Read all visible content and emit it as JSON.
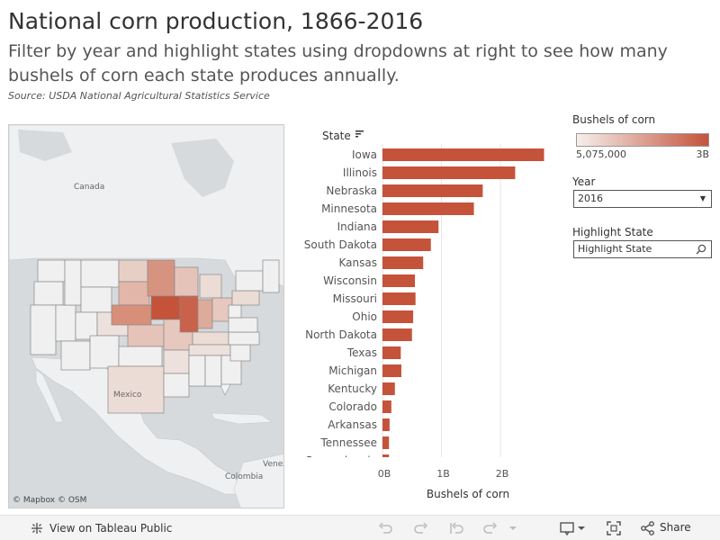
{
  "header": {
    "title": "National corn production, 1866-2016",
    "subtitle": "Filter by year and highlight states using dropdowns at right to see how many bushels of corn each state produces annually.",
    "source": "Source: USDA National Agricultural Statistics Service"
  },
  "map": {
    "labels": {
      "canada": "Canada",
      "mexico": "Mexico",
      "colombia": "Colombia",
      "venezuela": "Venez"
    },
    "credit": "© Mapbox  © OSM"
  },
  "legend": {
    "title": "Bushels of corn",
    "min_label": "5,075,000",
    "max_label": "3B",
    "color_low": "#f6efec",
    "color_high": "#c4533a"
  },
  "controls": {
    "year_title": "Year",
    "year_value": "2016",
    "highlight_title": "Highlight State",
    "highlight_placeholder": "Highlight State"
  },
  "chart_data": {
    "type": "bar",
    "orientation": "horizontal",
    "row_header": "State",
    "xlabel": "Bushels of corn",
    "xlim": [
      0,
      2900000000
    ],
    "xticks": [
      {
        "value": 0,
        "label": "0B"
      },
      {
        "value": 1000000000,
        "label": "1B"
      },
      {
        "value": 2000000000,
        "label": "2B"
      }
    ],
    "bar_color": "#c4533a",
    "categories": [
      "Iowa",
      "Illinois",
      "Nebraska",
      "Minnesota",
      "Indiana",
      "South Dakota",
      "Kansas",
      "Wisconsin",
      "Missouri",
      "Ohio",
      "North Dakota",
      "Texas",
      "Michigan",
      "Kentucky",
      "Colorado",
      "Arkansas",
      "Tennessee",
      "Pennsylvania"
    ],
    "values": [
      2740000000,
      2250000000,
      1700000000,
      1550000000,
      950000000,
      820000000,
      690000000,
      550000000,
      560000000,
      520000000,
      500000000,
      310000000,
      320000000,
      210000000,
      150000000,
      120000000,
      110000000,
      110000000
    ]
  },
  "footer": {
    "view_label": "View on Tableau Public",
    "share_label": "Share"
  }
}
